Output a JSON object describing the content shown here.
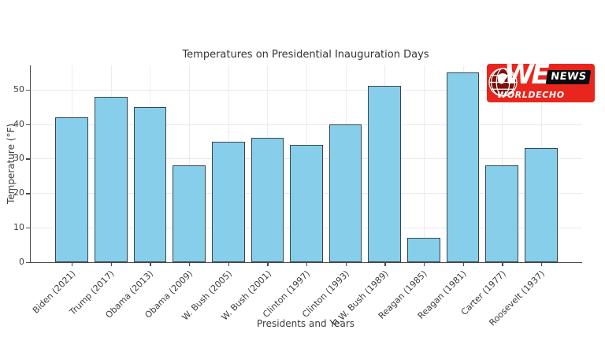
{
  "chart_data": {
    "type": "bar",
    "title": "Temperatures on Presidential Inauguration Days",
    "xlabel": "Presidents and Years",
    "ylabel": "Temperature (°F)",
    "categories": [
      "Biden (2021)",
      "Trump (2017)",
      "Obama (2013)",
      "Obama (2009)",
      "W. Bush (2005)",
      "W. Bush (2001)",
      "Clinton (1997)",
      "Clinton (1993)",
      "H.W. Bush (1989)",
      "Reagan (1985)",
      "Reagan (1981)",
      "Carter (1977)",
      "Roosevelt (1937)"
    ],
    "values": [
      42,
      48,
      45,
      28,
      35,
      36,
      34,
      40,
      51,
      7,
      55,
      28,
      33
    ],
    "yticks": [
      0,
      10,
      20,
      30,
      40,
      50
    ],
    "ylim": [
      0,
      57
    ],
    "grid": true,
    "legend": "none",
    "bar_color": "#87CEEB",
    "bar_edge_color": "#36454f"
  },
  "logo": {
    "we_text": "WE",
    "news_label": "NEWS",
    "brand": "WORLDECHO",
    "bg_color": "#e8261d",
    "news_bg": "#0c0c0c"
  }
}
